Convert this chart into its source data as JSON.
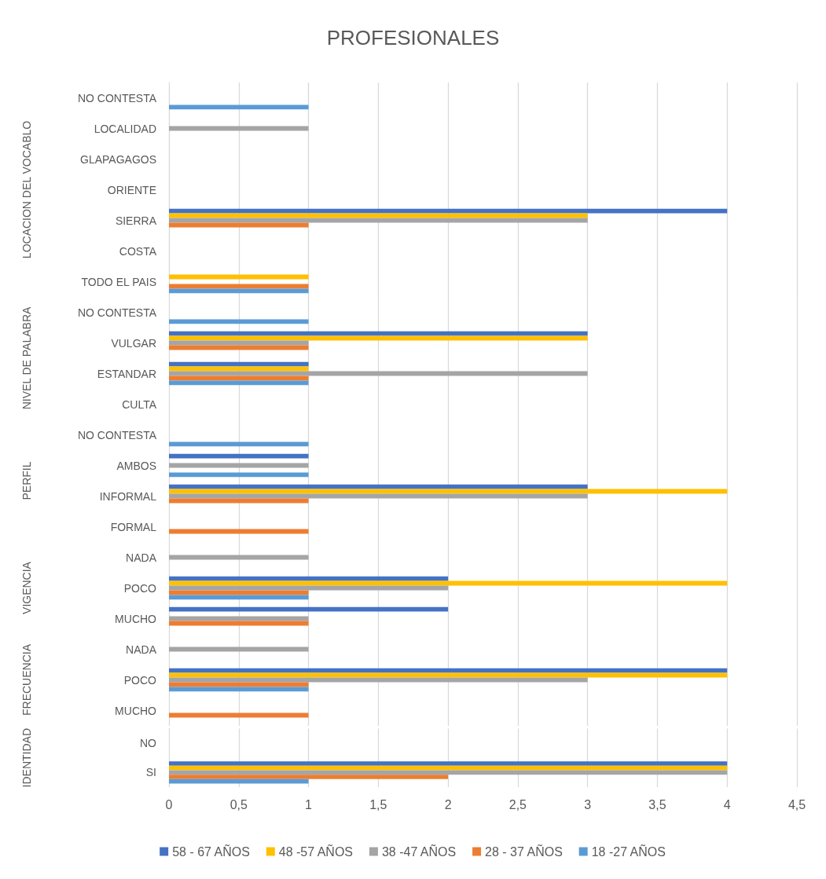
{
  "chart_data": [
    {
      "type": "bar",
      "orientation": "horizontal",
      "title": "PROFESIONALES",
      "ylabel": "LOCACION DEL VOCABLO",
      "categories": [
        "NO CONTESTA",
        "LOCALIDAD",
        "GLAPAGAGOS",
        "ORIENTE",
        "SIERRA",
        "COSTA",
        "TODO EL PAIS"
      ],
      "xlim": [
        0,
        4.5
      ],
      "xticks": [
        0,
        0.5,
        1,
        1.5,
        2,
        2.5,
        3,
        3.5,
        4,
        4.5
      ],
      "grid": "x",
      "tick_labels": "y",
      "series": [
        {
          "color": "#4472c4",
          "values": [
            null,
            null,
            null,
            null,
            4,
            null,
            null
          ]
        },
        {
          "color": "#ffc000",
          "values": [
            null,
            null,
            null,
            null,
            3,
            null,
            1
          ]
        },
        {
          "color": "#a5a5a5",
          "values": [
            null,
            1,
            null,
            null,
            3,
            null,
            null
          ]
        },
        {
          "color": "#ed7d31",
          "values": [
            null,
            null,
            null,
            null,
            1,
            null,
            1
          ]
        },
        {
          "color": "#5b9bd5",
          "values": [
            1,
            null,
            null,
            null,
            null,
            null,
            1
          ]
        }
      ]
    },
    {
      "type": "bar",
      "orientation": "horizontal",
      "ylabel": "NIVEL DE PALABRA",
      "categories": [
        "NO CONTESTA",
        "VULGAR",
        "ESTANDAR",
        "CULTA"
      ],
      "xlim": [
        0,
        4.5
      ],
      "xticks": [
        0,
        0.5,
        1,
        1.5,
        2,
        2.5,
        3,
        3.5,
        4,
        4.5
      ],
      "grid": "x",
      "tick_labels": "y",
      "series": [
        {
          "color": "#4472c4",
          "values": [
            null,
            3,
            1,
            null
          ]
        },
        {
          "color": "#ffc000",
          "values": [
            null,
            3,
            1,
            null
          ]
        },
        {
          "color": "#a5a5a5",
          "values": [
            null,
            1,
            3,
            null
          ]
        },
        {
          "color": "#ed7d31",
          "values": [
            null,
            1,
            1,
            null
          ]
        },
        {
          "color": "#5b9bd5",
          "values": [
            1,
            null,
            1,
            null
          ]
        }
      ]
    },
    {
      "type": "bar",
      "orientation": "horizontal",
      "ylabel": "PERFIL",
      "categories": [
        "NO CONTESTA",
        "AMBOS",
        "INFORMAL",
        "FORMAL"
      ],
      "xlim": [
        0,
        4.5
      ],
      "xticks": [
        0,
        0.5,
        1,
        1.5,
        2,
        2.5,
        3,
        3.5,
        4,
        4.5
      ],
      "grid": "x",
      "tick_labels": "y",
      "series": [
        {
          "color": "#4472c4",
          "values": [
            null,
            1,
            3,
            null
          ]
        },
        {
          "color": "#ffc000",
          "values": [
            null,
            null,
            4,
            null
          ]
        },
        {
          "color": "#a5a5a5",
          "values": [
            null,
            1,
            3,
            null
          ]
        },
        {
          "color": "#ed7d31",
          "values": [
            null,
            null,
            1,
            1
          ]
        },
        {
          "color": "#5b9bd5",
          "values": [
            1,
            1,
            null,
            null
          ]
        }
      ]
    },
    {
      "type": "bar",
      "orientation": "horizontal",
      "ylabel": "VIGENCIA",
      "categories": [
        "NADA",
        "POCO",
        "MUCHO"
      ],
      "xlim": [
        0,
        4.5
      ],
      "xticks": [
        0,
        0.5,
        1,
        1.5,
        2,
        2.5,
        3,
        3.5,
        4,
        4.5
      ],
      "grid": "x",
      "tick_labels": "y",
      "series": [
        {
          "color": "#4472c4",
          "values": [
            null,
            2,
            2
          ]
        },
        {
          "color": "#ffc000",
          "values": [
            null,
            4,
            null
          ]
        },
        {
          "color": "#a5a5a5",
          "values": [
            1,
            2,
            1
          ]
        },
        {
          "color": "#ed7d31",
          "values": [
            null,
            1,
            1
          ]
        },
        {
          "color": "#5b9bd5",
          "values": [
            null,
            1,
            null
          ]
        }
      ]
    },
    {
      "type": "bar",
      "orientation": "horizontal",
      "ylabel": "FRECUENCIA",
      "categories": [
        "NADA",
        "POCO",
        "MUCHO"
      ],
      "xlim": [
        0,
        4.5
      ],
      "xticks": [
        0,
        0.5,
        1,
        1.5,
        2,
        2.5,
        3,
        3.5,
        4,
        4.5
      ],
      "grid": "x",
      "tick_labels": "y",
      "series": [
        {
          "color": "#4472c4",
          "values": [
            null,
            4,
            null
          ]
        },
        {
          "color": "#ffc000",
          "values": [
            null,
            4,
            null
          ]
        },
        {
          "color": "#a5a5a5",
          "values": [
            1,
            3,
            null
          ]
        },
        {
          "color": "#ed7d31",
          "values": [
            null,
            1,
            1
          ]
        },
        {
          "color": "#5b9bd5",
          "values": [
            null,
            1,
            null
          ]
        }
      ]
    },
    {
      "type": "bar",
      "orientation": "horizontal",
      "ylabel": "IDENTIDAD",
      "categories": [
        "NO",
        "SI"
      ],
      "xlim": [
        0,
        4.5
      ],
      "xticks": [
        0,
        {
          "value": 0.5,
          "label": "0,5"
        },
        1,
        {
          "value": 1.5,
          "label": "1,5"
        },
        2,
        {
          "value": 2.5,
          "label": "2,5"
        },
        3,
        {
          "value": 3.5,
          "label": "3,5"
        },
        4,
        {
          "value": 4.5,
          "label": "4,5"
        }
      ],
      "grid": "x",
      "legend": "bottom",
      "series": [
        {
          "name": "58 - 67 AÑOS",
          "color": "#4472c4",
          "values": [
            null,
            4
          ]
        },
        {
          "name": "48 -57 AÑOS",
          "color": "#ffc000",
          "values": [
            null,
            4
          ]
        },
        {
          "name": "38 -47 AÑOS",
          "color": "#a5a5a5",
          "values": [
            null,
            4
          ]
        },
        {
          "name": "28 - 37 AÑOS",
          "color": "#ed7d31",
          "values": [
            null,
            2
          ]
        },
        {
          "name": "18 -27 AÑOS",
          "color": "#5b9bd5",
          "values": [
            null,
            1
          ]
        }
      ]
    }
  ]
}
